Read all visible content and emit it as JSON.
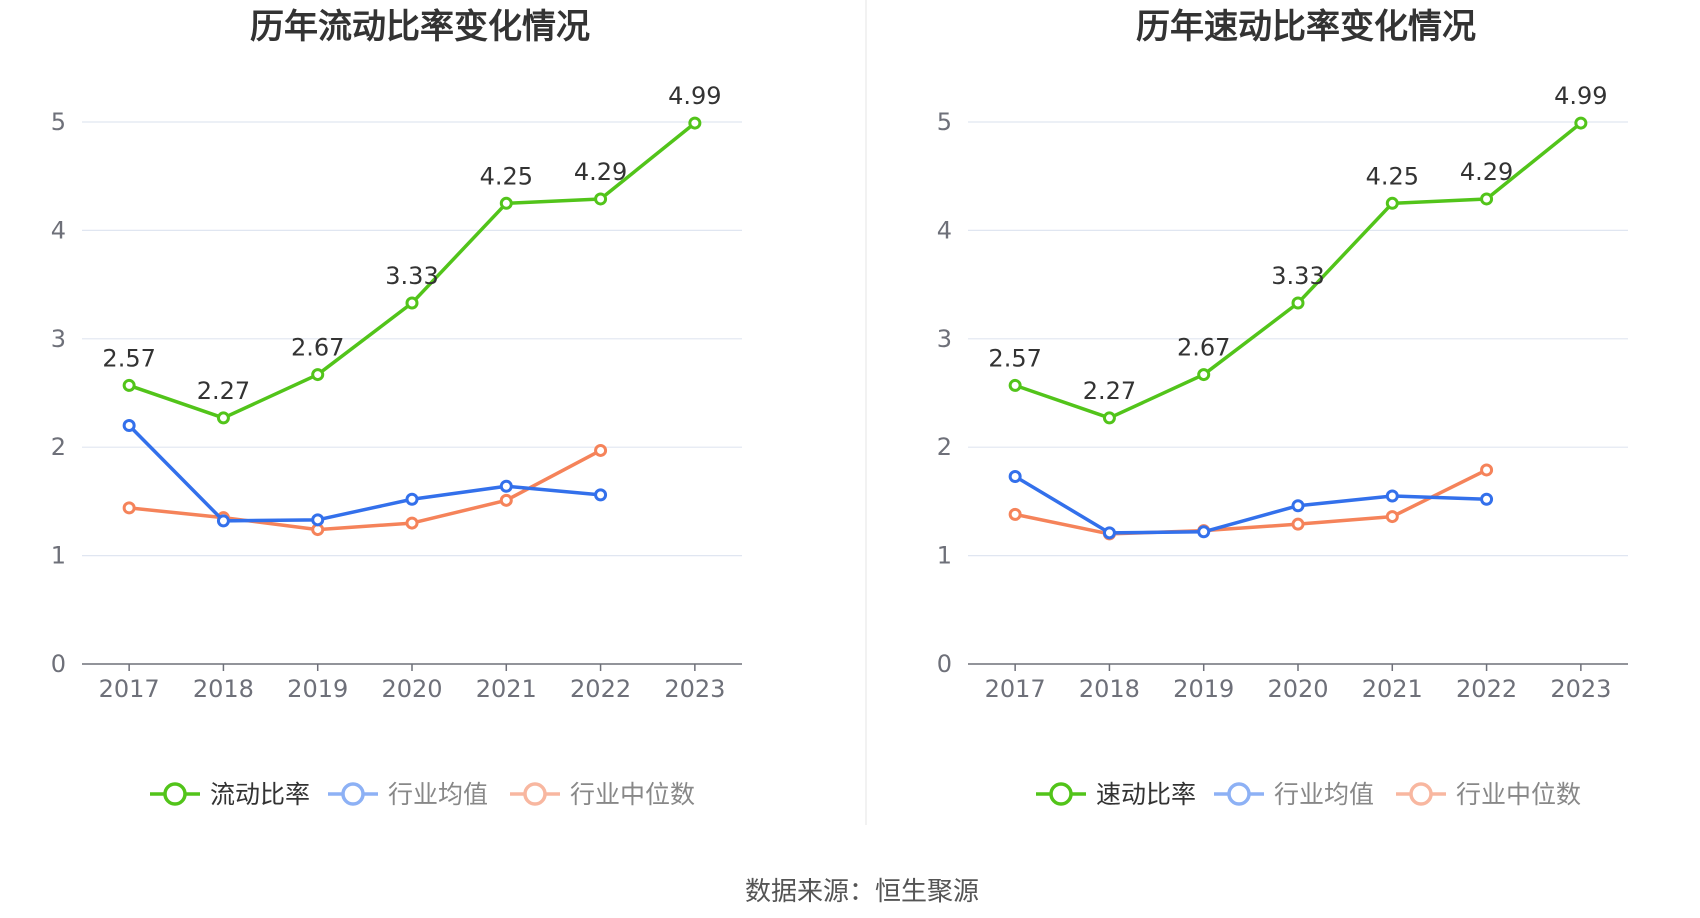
{
  "source_label": "数据来源：恒生聚源",
  "colors": {
    "main": "#52c41a",
    "avg": "#3370eb",
    "median": "#f5835a",
    "grid": "#e0e6f1",
    "axis": "#6e7079"
  },
  "chart_data": [
    {
      "type": "line",
      "title": "历年流动比率变化情况",
      "categories": [
        "2017",
        "2018",
        "2019",
        "2020",
        "2021",
        "2022",
        "2023"
      ],
      "ylim": [
        0,
        5
      ],
      "yticks": [
        "0",
        "1",
        "2",
        "3",
        "4",
        "5"
      ],
      "grid": true,
      "legend_position": "bottom",
      "series": [
        {
          "name": "流动比率",
          "values": [
            2.57,
            2.27,
            2.67,
            3.33,
            4.25,
            4.29,
            4.99
          ],
          "labels": [
            "2.57",
            "2.27",
            "2.67",
            "3.33",
            "4.25",
            "4.29",
            "4.99"
          ]
        },
        {
          "name": "行业均值",
          "values": [
            2.2,
            1.32,
            1.33,
            1.52,
            1.64,
            1.56,
            null
          ]
        },
        {
          "name": "行业中位数",
          "values": [
            1.44,
            1.35,
            1.24,
            1.3,
            1.51,
            1.97,
            null
          ]
        }
      ]
    },
    {
      "type": "line",
      "title": "历年速动比率变化情况",
      "categories": [
        "2017",
        "2018",
        "2019",
        "2020",
        "2021",
        "2022",
        "2023"
      ],
      "ylim": [
        0,
        5
      ],
      "yticks": [
        "0",
        "1",
        "2",
        "3",
        "4",
        "5"
      ],
      "grid": true,
      "legend_position": "bottom",
      "series": [
        {
          "name": "速动比率",
          "values": [
            2.57,
            2.27,
            2.67,
            3.33,
            4.25,
            4.29,
            4.99
          ],
          "labels": [
            "2.57",
            "2.27",
            "2.67",
            "3.33",
            "4.25",
            "4.29",
            "4.99"
          ]
        },
        {
          "name": "行业均值",
          "values": [
            1.73,
            1.21,
            1.22,
            1.46,
            1.55,
            1.52,
            null
          ]
        },
        {
          "name": "行业中位数",
          "values": [
            1.38,
            1.2,
            1.23,
            1.29,
            1.36,
            1.79,
            null
          ]
        }
      ]
    }
  ]
}
